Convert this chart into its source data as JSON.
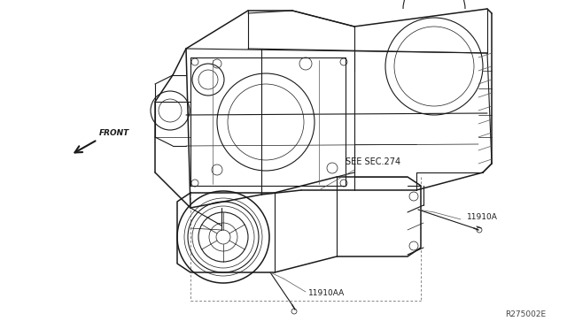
{
  "background_color": "#ffffff",
  "figure_width": 6.4,
  "figure_height": 3.72,
  "dpi": 100,
  "ref_code": "R275002E",
  "label_see_sec": "SEE SEC.274",
  "label_front": "FRONT",
  "label_11910A": "11910A",
  "label_11910AA": "11910AA",
  "text_color": "#1a1a1a",
  "line_color": "#1a1a1a",
  "line_color_light": "#555555"
}
